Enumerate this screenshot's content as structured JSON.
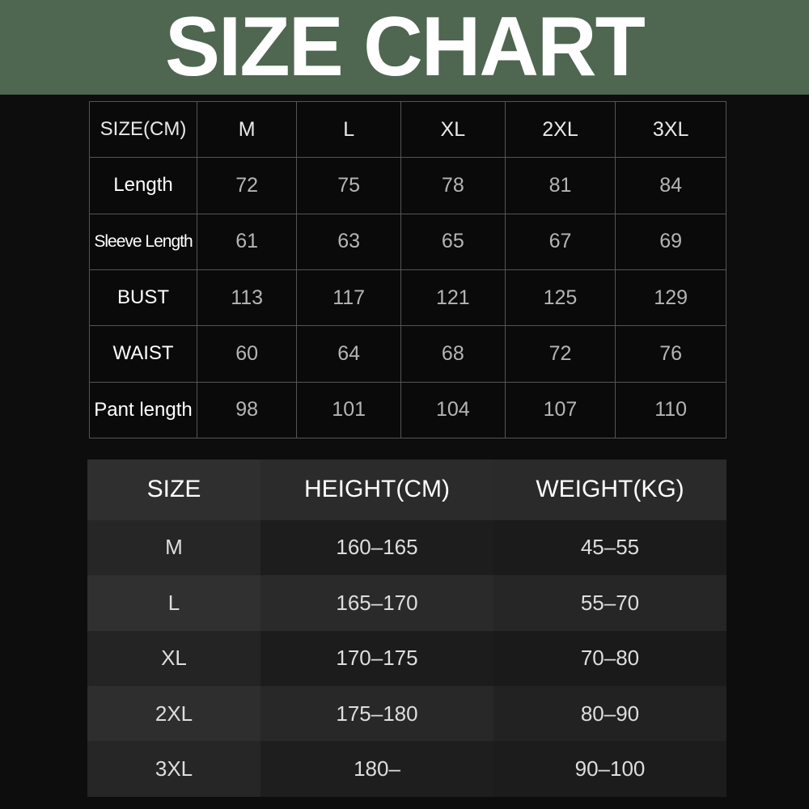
{
  "title": "SIZE CHART",
  "colors": {
    "banner": "#4f6651",
    "background": "#0d0d0d",
    "text": "#ffffff"
  },
  "measurements": {
    "header": [
      "SIZE(CM)",
      "M",
      "L",
      "XL",
      "2XL",
      "3XL"
    ],
    "rows": [
      {
        "label": "Length",
        "values": [
          "72",
          "75",
          "78",
          "81",
          "84"
        ]
      },
      {
        "label": "Sleeve Length",
        "values": [
          "61",
          "63",
          "65",
          "67",
          "69"
        ]
      },
      {
        "label": "BUST",
        "values": [
          "113",
          "117",
          "121",
          "125",
          "129"
        ]
      },
      {
        "label": "WAIST",
        "values": [
          "60",
          "64",
          "68",
          "72",
          "76"
        ]
      },
      {
        "label": "Pant length",
        "values": [
          "98",
          "101",
          "104",
          "107",
          "110"
        ]
      }
    ]
  },
  "fit_guide": {
    "header": [
      "SIZE",
      "HEIGHT(CM)",
      "WEIGHT(KG)"
    ],
    "rows": [
      [
        "M",
        "160–165",
        "45–55"
      ],
      [
        "L",
        "165–170",
        "55–70"
      ],
      [
        "XL",
        "170–175",
        "70–80"
      ],
      [
        "2XL",
        "175–180",
        "80–90"
      ],
      [
        "3XL",
        "180–",
        "90–100"
      ]
    ]
  }
}
